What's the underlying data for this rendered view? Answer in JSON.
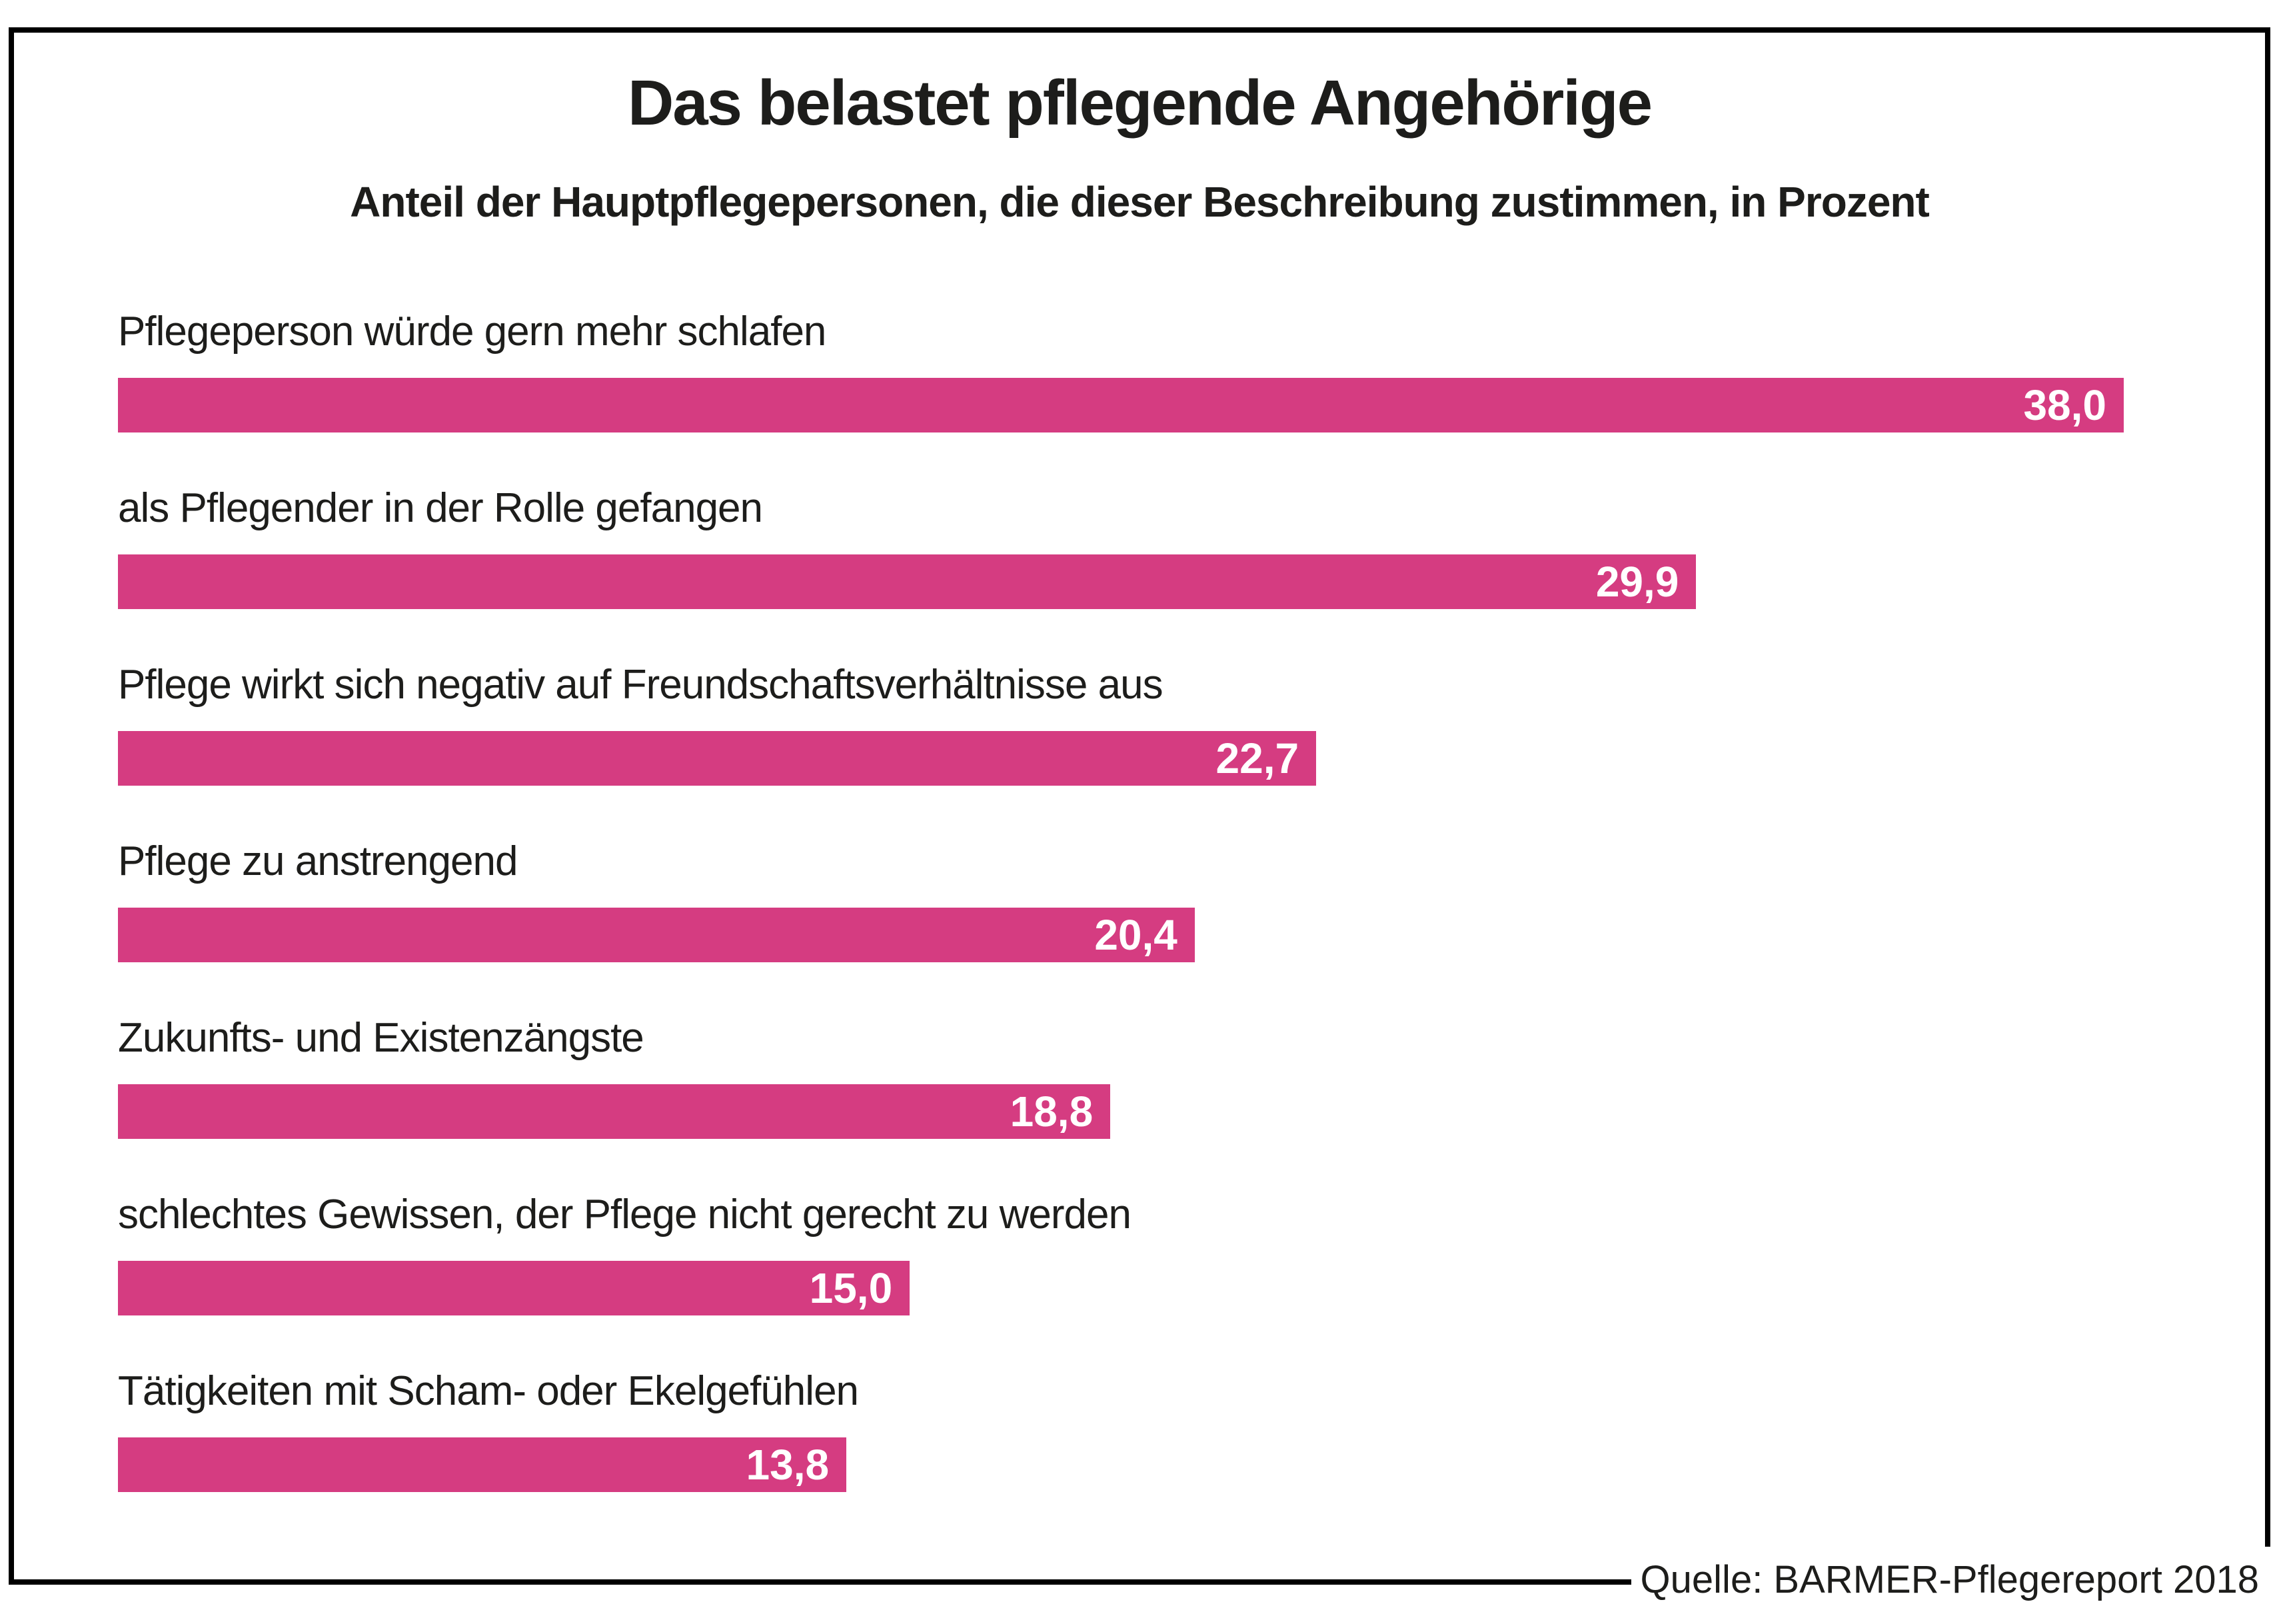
{
  "chart_data": {
    "type": "bar",
    "orientation": "horizontal",
    "title": "Das belastet pflegende Angehörige",
    "subtitle": "Anteil der Hauptpflegepersonen, die dieser Beschreibung zustimmen, in Prozent",
    "source": "Quelle: BARMER-Pflegereport 2018",
    "categories": [
      "Pflegeperson würde gern mehr schlafen",
      "als Pflegender in der Rolle gefangen",
      "Pflege wirkt sich negativ auf Freundschaftsverhältnisse aus",
      "Pflege zu anstrengend",
      "Zukunfts- und Existenzängste",
      "schlechtes Gewissen, der Pflege nicht gerecht zu werden",
      "Tätigkeiten mit Scham- oder Ekelgefühlen"
    ],
    "values": [
      38.0,
      29.9,
      22.7,
      20.4,
      18.8,
      15.0,
      13.8
    ],
    "value_labels": [
      "38,0",
      "29,9",
      "22,7",
      "20,4",
      "18,8",
      "15,0",
      "13,8"
    ],
    "xlim": [
      0,
      38.0
    ],
    "unit": "Prozent",
    "bar_color": "#d53c81",
    "value_label_color": "#ffffff",
    "grid": false,
    "legend": "none",
    "axis_ticks": "none",
    "frame_color": "#000000"
  }
}
